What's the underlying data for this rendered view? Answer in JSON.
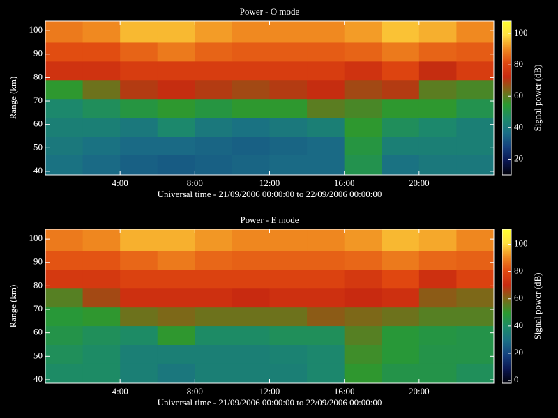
{
  "chart_data": [
    {
      "type": "heatmap",
      "title": "Power - O mode",
      "xlabel": "Universal time - 21/09/2006 00:00:00 to 22/09/2006 00:00:00",
      "ylabel": "Range (km)",
      "colorbar_label": "Signal power (dB)",
      "xlim": [
        0,
        24
      ],
      "ylim": [
        38.5,
        104.2
      ],
      "xticks": [
        {
          "value": 4,
          "label": "4:00"
        },
        {
          "value": 8,
          "label": "8:00"
        },
        {
          "value": 12,
          "label": "12:00"
        },
        {
          "value": 16,
          "label": "16:00"
        },
        {
          "value": 20,
          "label": "20:00"
        }
      ],
      "yticks": [
        40,
        50,
        60,
        70,
        80,
        90,
        100
      ],
      "clim": [
        10,
        108
      ],
      "cticks": [
        20,
        40,
        60,
        80,
        100
      ],
      "colormap": [
        "#000008",
        "#0a1650",
        "#14407e",
        "#1a6e86",
        "#1c8a6a",
        "#2a9a30",
        "#7a6a18",
        "#c82a10",
        "#e04810",
        "#f08a20",
        "#ffe040",
        "#ffff30"
      ],
      "x_edges": [
        0,
        2,
        4,
        6,
        8,
        10,
        12,
        14,
        16,
        18,
        20,
        22,
        24
      ],
      "y_edges": [
        38.5,
        47,
        55,
        63,
        71,
        79,
        87,
        95,
        104.2
      ],
      "values": [
        [
          38,
          36,
          34,
          33,
          34,
          35,
          36,
          36,
          50,
          38,
          40,
          40
        ],
        [
          40,
          38,
          36,
          36,
          35,
          34,
          35,
          36,
          52,
          42,
          42,
          42
        ],
        [
          42,
          42,
          40,
          45,
          40,
          38,
          40,
          42,
          55,
          48,
          45,
          42
        ],
        [
          45,
          48,
          52,
          55,
          52,
          55,
          55,
          60,
          58,
          55,
          55,
          50
        ],
        [
          55,
          62,
          70,
          72,
          70,
          68,
          70,
          72,
          68,
          70,
          60,
          58
        ],
        [
          75,
          75,
          78,
          78,
          78,
          78,
          78,
          78,
          75,
          80,
          72,
          78
        ],
        [
          82,
          82,
          85,
          88,
          85,
          84,
          84,
          84,
          85,
          88,
          85,
          84
        ],
        [
          88,
          90,
          95,
          95,
          92,
          90,
          90,
          90,
          92,
          96,
          94,
          90
        ]
      ]
    },
    {
      "type": "heatmap",
      "title": "Power - E mode",
      "xlabel": "Universal time - 21/09/2006 00:00:00 to 22/09/2006 00:00:00",
      "ylabel": "Range (km)",
      "colorbar_label": "Signal power (dB)",
      "xlim": [
        0,
        24
      ],
      "ylim": [
        38.5,
        104.2
      ],
      "xticks": [
        {
          "value": 4,
          "label": "4:00"
        },
        {
          "value": 8,
          "label": "8:00"
        },
        {
          "value": 12,
          "label": "12:00"
        },
        {
          "value": 16,
          "label": "16:00"
        },
        {
          "value": 20,
          "label": "20:00"
        }
      ],
      "yticks": [
        40,
        50,
        60,
        70,
        80,
        90,
        100
      ],
      "clim": [
        -2,
        111
      ],
      "cticks": [
        0,
        20,
        40,
        60,
        80,
        100
      ],
      "colormap": [
        "#000008",
        "#0a1650",
        "#14407e",
        "#1a6e86",
        "#1c8a6a",
        "#2a9a30",
        "#7a6a18",
        "#c82a10",
        "#e04810",
        "#f08a20",
        "#ffe040",
        "#ffff30"
      ],
      "x_edges": [
        0,
        2,
        4,
        6,
        8,
        10,
        12,
        14,
        16,
        18,
        20,
        22,
        24
      ],
      "y_edges": [
        38.5,
        47,
        55,
        63,
        71,
        79,
        87,
        95,
        104.2
      ],
      "values": [
        [
          40,
          40,
          35,
          32,
          35,
          35,
          35,
          38,
          50,
          45,
          45,
          42
        ],
        [
          42,
          40,
          35,
          35,
          35,
          35,
          36,
          38,
          52,
          48,
          45,
          45
        ],
        [
          45,
          42,
          40,
          50,
          40,
          40,
          42,
          42,
          55,
          48,
          46,
          45
        ],
        [
          48,
          50,
          58,
          60,
          58,
          58,
          58,
          62,
          60,
          58,
          55,
          55
        ],
        [
          55,
          65,
          72,
          72,
          72,
          70,
          72,
          72,
          70,
          72,
          62,
          60
        ],
        [
          75,
          75,
          78,
          78,
          78,
          78,
          78,
          78,
          75,
          80,
          72,
          78
        ],
        [
          82,
          82,
          85,
          88,
          85,
          84,
          84,
          84,
          85,
          88,
          85,
          84
        ],
        [
          88,
          90,
          95,
          95,
          92,
          90,
          90,
          90,
          92,
          96,
          94,
          90
        ]
      ]
    }
  ]
}
